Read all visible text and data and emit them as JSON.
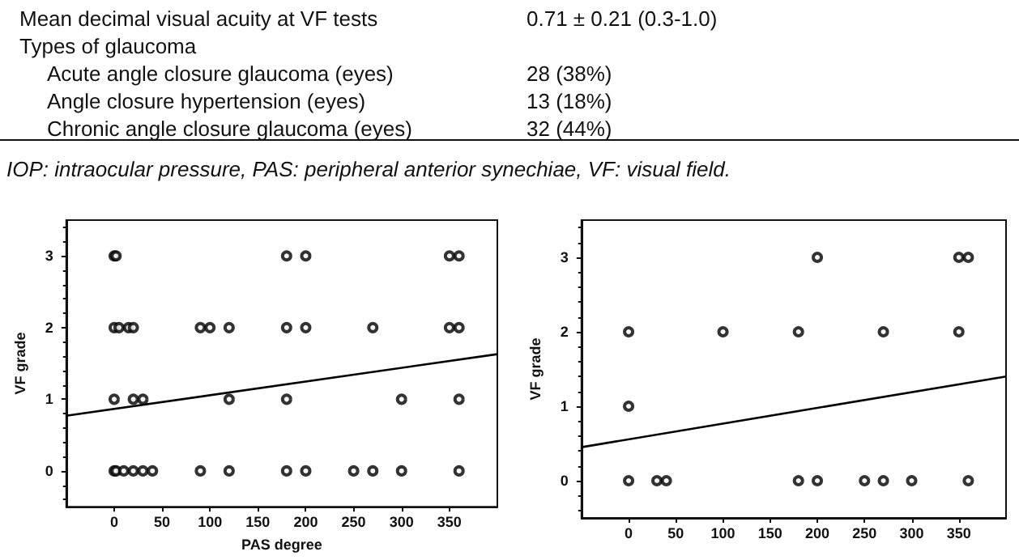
{
  "chart_data": [
    {
      "type": "other",
      "annotations": [
        "Mean decimal visual acuity at VF tests",
        "0.71 ± 0.21 (0.3-1.0)",
        "Types of glaucoma",
        "Acute angle closure glaucoma (eyes)",
        "28 (38%)",
        "Angle closure hypertension (eyes)",
        "13 (18%)",
        "Chronic angle closure glaucoma (eyes)",
        "32 (44%)",
        "IOP: intraocular pressure, PAS: peripheral anterior synechiae, VF: visual field."
      ]
    },
    {
      "type": "scatter",
      "xlabel": "PAS degree",
      "ylabel": "VF grade",
      "xlim": [
        -50,
        400
      ],
      "xticks": [
        0,
        50,
        100,
        150,
        200,
        250,
        300,
        350
      ],
      "ylim": [
        -0.5,
        3.5
      ],
      "yticks": [
        0,
        1,
        2,
        3
      ],
      "series": [
        {
          "marker": "circle",
          "color": "#000000",
          "x": [
            0,
            2,
            180,
            200,
            350,
            360,
            0,
            5,
            15,
            20,
            90,
            100,
            120,
            180,
            200,
            270,
            350,
            360,
            0,
            20,
            30,
            120,
            180,
            300,
            360,
            0,
            2,
            10,
            20,
            30,
            40,
            90,
            120,
            180,
            200,
            250,
            270,
            300,
            360
          ],
          "values": [
            3,
            3,
            3,
            3,
            3,
            3,
            2,
            2,
            2,
            2,
            2,
            2,
            2,
            2,
            2,
            2,
            2,
            2,
            1,
            1,
            1,
            1,
            1,
            1,
            1,
            0,
            0,
            0,
            0,
            0,
            0,
            0,
            0,
            0,
            0,
            0,
            0,
            0,
            0
          ]
        },
        {
          "type": "line",
          "marker": "none",
          "color": "#000000",
          "x": [
            -50,
            400
          ],
          "values": [
            0.77,
            1.63
          ]
        }
      ]
    },
    {
      "type": "scatter",
      "ylabel": "VF grade",
      "xlim": [
        -50,
        400
      ],
      "xticks": [
        0,
        50,
        100,
        150,
        200,
        250,
        300,
        350
      ],
      "ylim": [
        -0.5,
        3.5
      ],
      "yticks": [
        0,
        1,
        2,
        3
      ],
      "series": [
        {
          "marker": "circle",
          "color": "#000000",
          "x": [
            200,
            350,
            360,
            0,
            100,
            180,
            270,
            350,
            0,
            0,
            30,
            40,
            180,
            200,
            250,
            270,
            300,
            360
          ],
          "values": [
            3,
            3,
            3,
            2,
            2,
            2,
            2,
            2,
            1,
            0,
            0,
            0,
            0,
            0,
            0,
            0,
            0,
            0
          ]
        },
        {
          "type": "line",
          "marker": "none",
          "color": "#000000",
          "x": [
            -50,
            400
          ],
          "values": [
            0.45,
            1.4
          ]
        }
      ]
    }
  ]
}
